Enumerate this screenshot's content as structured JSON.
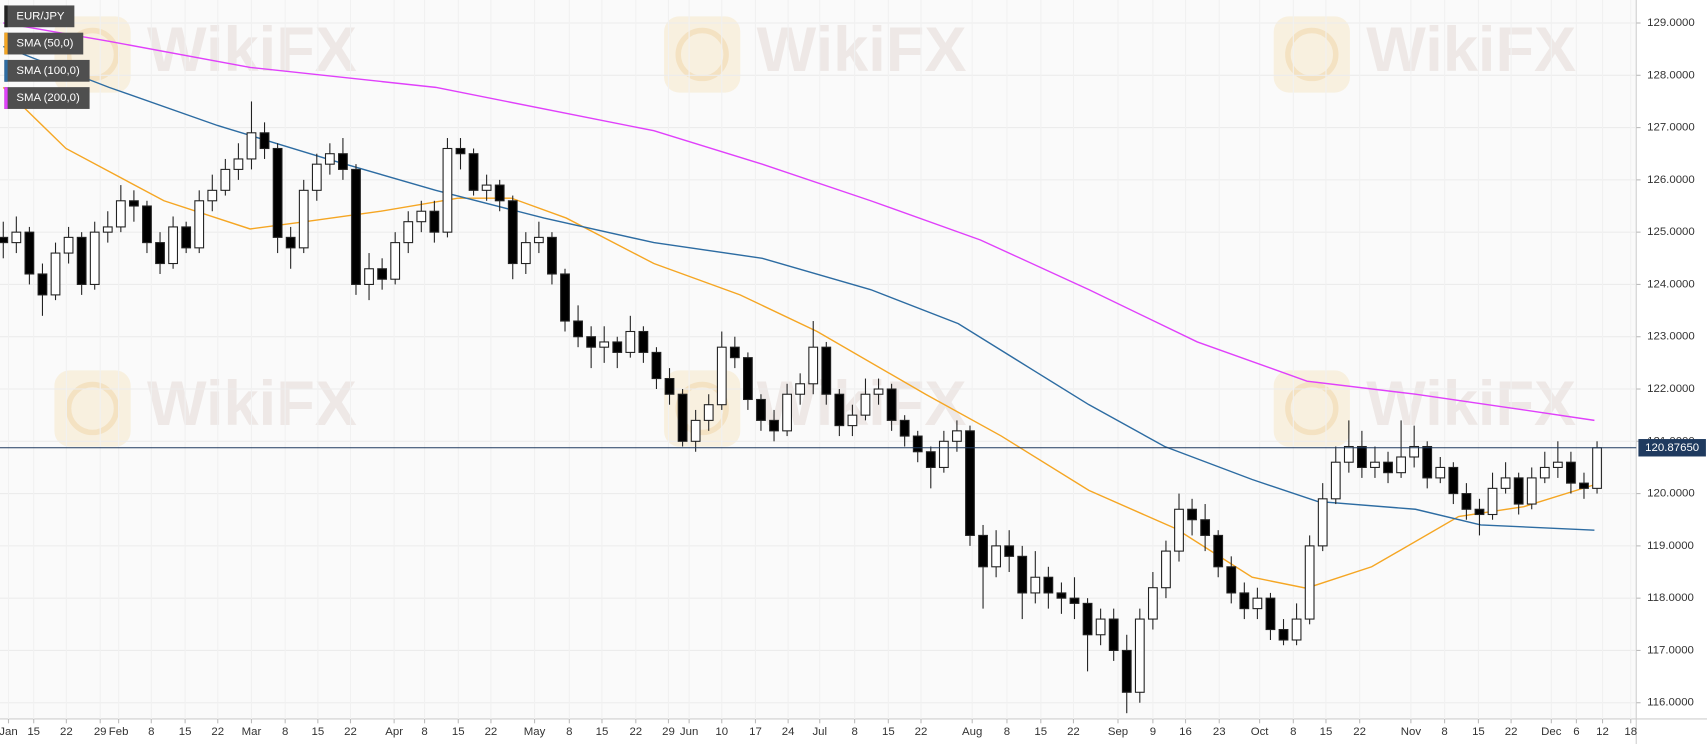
{
  "chart_data": {
    "type": "candlestick",
    "watermark": "WikiFX",
    "candles": {
      "name": "EUR/JPY",
      "color": "#222222",
      "up_color": "#ffffff",
      "down_color": "#000000",
      "ohlc": [
        [
          124.9,
          125.2,
          124.5,
          124.8
        ],
        [
          124.8,
          125.3,
          124.6,
          125.0
        ],
        [
          125.0,
          125.1,
          124.0,
          124.2
        ],
        [
          124.2,
          124.4,
          123.4,
          123.8
        ],
        [
          123.8,
          124.8,
          123.7,
          124.6
        ],
        [
          124.6,
          125.1,
          124.4,
          124.9
        ],
        [
          124.9,
          125.0,
          123.8,
          124.0
        ],
        [
          124.0,
          125.2,
          123.9,
          125.0
        ],
        [
          125.0,
          125.4,
          124.8,
          125.1
        ],
        [
          125.1,
          125.9,
          125.0,
          125.6
        ],
        [
          125.6,
          125.8,
          125.2,
          125.5
        ],
        [
          125.5,
          125.6,
          124.6,
          124.8
        ],
        [
          124.8,
          125.0,
          124.2,
          124.4
        ],
        [
          124.4,
          125.3,
          124.3,
          125.1
        ],
        [
          125.1,
          125.2,
          124.6,
          124.7
        ],
        [
          124.7,
          125.8,
          124.6,
          125.6
        ],
        [
          125.6,
          126.1,
          125.4,
          125.8
        ],
        [
          125.8,
          126.4,
          125.7,
          126.2
        ],
        [
          126.2,
          126.7,
          126.0,
          126.4
        ],
        [
          126.4,
          127.5,
          126.2,
          126.9
        ],
        [
          126.9,
          127.1,
          126.4,
          126.6
        ],
        [
          126.6,
          126.7,
          124.6,
          124.9
        ],
        [
          124.9,
          125.1,
          124.3,
          124.7
        ],
        [
          124.7,
          126.0,
          124.6,
          125.8
        ],
        [
          125.8,
          126.5,
          125.6,
          126.3
        ],
        [
          126.3,
          126.7,
          126.1,
          126.5
        ],
        [
          126.5,
          126.8,
          126.0,
          126.2
        ],
        [
          126.2,
          126.3,
          123.8,
          124.0
        ],
        [
          124.0,
          124.6,
          123.7,
          124.3
        ],
        [
          124.3,
          124.5,
          123.9,
          124.1
        ],
        [
          124.1,
          125.0,
          124.0,
          124.8
        ],
        [
          124.8,
          125.4,
          124.6,
          125.2
        ],
        [
          125.2,
          125.6,
          125.0,
          125.4
        ],
        [
          125.4,
          125.6,
          124.8,
          125.0
        ],
        [
          125.0,
          126.8,
          124.9,
          126.6
        ],
        [
          126.6,
          126.8,
          126.2,
          126.5
        ],
        [
          126.5,
          126.6,
          125.7,
          125.8
        ],
        [
          125.8,
          126.1,
          125.6,
          125.9
        ],
        [
          125.9,
          126.0,
          125.4,
          125.6
        ],
        [
          125.6,
          125.7,
          124.1,
          124.4
        ],
        [
          124.4,
          125.0,
          124.2,
          124.8
        ],
        [
          124.8,
          125.2,
          124.6,
          124.9
        ],
        [
          124.9,
          125.0,
          124.0,
          124.2
        ],
        [
          124.2,
          124.3,
          123.1,
          123.3
        ],
        [
          123.3,
          123.6,
          122.8,
          123.0
        ],
        [
          123.0,
          123.2,
          122.4,
          122.8
        ],
        [
          122.8,
          123.2,
          122.5,
          122.9
        ],
        [
          122.9,
          123.0,
          122.4,
          122.7
        ],
        [
          122.7,
          123.4,
          122.6,
          123.1
        ],
        [
          123.1,
          123.2,
          122.5,
          122.7
        ],
        [
          122.7,
          122.8,
          122.0,
          122.2
        ],
        [
          122.2,
          122.4,
          121.7,
          121.9
        ],
        [
          121.9,
          122.0,
          120.9,
          121.0
        ],
        [
          121.0,
          121.6,
          120.8,
          121.4
        ],
        [
          121.4,
          121.9,
          121.2,
          121.7
        ],
        [
          121.7,
          123.1,
          121.6,
          122.8
        ],
        [
          122.8,
          123.0,
          122.4,
          122.6
        ],
        [
          122.6,
          122.7,
          121.6,
          121.8
        ],
        [
          121.8,
          121.9,
          121.2,
          121.4
        ],
        [
          121.4,
          121.6,
          121.0,
          121.2
        ],
        [
          121.2,
          122.1,
          121.1,
          121.9
        ],
        [
          121.9,
          122.3,
          121.7,
          122.1
        ],
        [
          122.1,
          123.3,
          121.9,
          122.8
        ],
        [
          122.8,
          122.9,
          121.7,
          121.9
        ],
        [
          121.9,
          122.0,
          121.1,
          121.3
        ],
        [
          121.3,
          121.7,
          121.1,
          121.5
        ],
        [
          121.5,
          122.2,
          121.4,
          121.9
        ],
        [
          121.9,
          122.2,
          121.7,
          122.0
        ],
        [
          122.0,
          122.1,
          121.2,
          121.4
        ],
        [
          121.4,
          121.5,
          120.9,
          121.1
        ],
        [
          121.1,
          121.2,
          120.6,
          120.8
        ],
        [
          120.8,
          120.9,
          120.1,
          120.5
        ],
        [
          120.5,
          121.2,
          120.4,
          121.0
        ],
        [
          121.0,
          121.4,
          120.8,
          121.2
        ],
        [
          121.2,
          121.3,
          119.0,
          119.2
        ],
        [
          119.2,
          119.4,
          117.8,
          118.6
        ],
        [
          118.6,
          119.3,
          118.4,
          119.0
        ],
        [
          119.0,
          119.3,
          118.5,
          118.8
        ],
        [
          118.8,
          119.0,
          117.6,
          118.1
        ],
        [
          118.1,
          118.9,
          117.9,
          118.4
        ],
        [
          118.4,
          118.6,
          117.8,
          118.1
        ],
        [
          118.1,
          118.3,
          117.7,
          118.0
        ],
        [
          118.0,
          118.4,
          117.6,
          117.9
        ],
        [
          117.9,
          118.0,
          116.6,
          117.3
        ],
        [
          117.3,
          117.8,
          117.1,
          117.6
        ],
        [
          117.6,
          117.8,
          116.8,
          117.0
        ],
        [
          117.0,
          117.3,
          115.8,
          116.2
        ],
        [
          116.2,
          117.8,
          116.0,
          117.6
        ],
        [
          117.6,
          118.5,
          117.4,
          118.2
        ],
        [
          118.2,
          119.1,
          118.0,
          118.9
        ],
        [
          118.9,
          120.0,
          118.7,
          119.7
        ],
        [
          119.7,
          119.9,
          119.2,
          119.5
        ],
        [
          119.5,
          119.8,
          118.9,
          119.2
        ],
        [
          119.2,
          119.3,
          118.4,
          118.6
        ],
        [
          118.6,
          118.8,
          117.9,
          118.1
        ],
        [
          118.1,
          118.3,
          117.6,
          117.8
        ],
        [
          117.8,
          118.2,
          117.6,
          118.0
        ],
        [
          118.0,
          118.1,
          117.2,
          117.4
        ],
        [
          117.4,
          117.6,
          117.1,
          117.2
        ],
        [
          117.2,
          117.9,
          117.1,
          117.6
        ],
        [
          117.6,
          119.2,
          117.5,
          119.0
        ],
        [
          119.0,
          120.2,
          118.9,
          119.9
        ],
        [
          119.9,
          120.9,
          119.8,
          120.6
        ],
        [
          120.6,
          121.4,
          120.4,
          120.9
        ],
        [
          120.9,
          121.2,
          120.3,
          120.5
        ],
        [
          120.5,
          120.9,
          120.3,
          120.6
        ],
        [
          120.6,
          120.8,
          120.2,
          120.4
        ],
        [
          120.4,
          121.4,
          120.3,
          120.7
        ],
        [
          120.7,
          121.3,
          120.5,
          120.9
        ],
        [
          120.9,
          121.0,
          120.1,
          120.3
        ],
        [
          120.3,
          120.7,
          120.2,
          120.5
        ],
        [
          120.5,
          120.6,
          119.8,
          120.0
        ],
        [
          120.0,
          120.2,
          119.5,
          119.7
        ],
        [
          119.7,
          119.9,
          119.2,
          119.6
        ],
        [
          119.6,
          120.4,
          119.5,
          120.1
        ],
        [
          120.1,
          120.6,
          120.0,
          120.3
        ],
        [
          120.3,
          120.4,
          119.6,
          119.8
        ],
        [
          119.8,
          120.5,
          119.7,
          120.3
        ],
        [
          120.3,
          120.8,
          120.2,
          120.5
        ],
        [
          120.5,
          121.0,
          120.3,
          120.6
        ],
        [
          120.6,
          120.8,
          120.0,
          120.2
        ],
        [
          120.2,
          120.4,
          119.9,
          120.1
        ],
        [
          120.1,
          121.0,
          120.0,
          120.8765
        ]
      ]
    },
    "lines": [
      {
        "name": "SMA (50,0)",
        "color": "#f5a623",
        "x": [
          0,
          4.8,
          12.3,
          18.9,
          23.1,
          28.9,
          34.8,
          38.9,
          43.1,
          49.8,
          56.4,
          62.3,
          70.6,
          76.4,
          83.1,
          89.75,
          95.6,
          99.75,
          104.75,
          111.4,
          116.4,
          121.8
        ],
        "values": [
          127.77,
          126.6,
          125.6,
          125.06,
          125.2,
          125.4,
          125.65,
          125.65,
          125.27,
          124.4,
          123.8,
          123.1,
          121.9,
          121.1,
          120.06,
          119.33,
          118.4,
          118.19,
          118.6,
          119.56,
          119.75,
          120.17
        ]
      },
      {
        "name": "SMA (100,0)",
        "color": "#2d6ca2",
        "x": [
          0,
          8.1,
          16.4,
          24.8,
          33.1,
          41.4,
          49.8,
          58.1,
          66.4,
          73.1,
          78.9,
          83.1,
          88.9,
          95.6,
          100.6,
          108.1,
          113.1,
          121.8
        ],
        "values": [
          128.55,
          127.77,
          127.04,
          126.4,
          125.8,
          125.27,
          124.8,
          124.5,
          123.9,
          123.25,
          122.35,
          121.7,
          120.9,
          120.27,
          119.85,
          119.7,
          119.4,
          119.3
        ]
      },
      {
        "name": "SMA (200,0)",
        "color": "#e040fb",
        "x": [
          0,
          8.1,
          18.9,
          33.1,
          49.8,
          58.1,
          66.4,
          74.8,
          83.1,
          91.4,
          99.8,
          108.1,
          116.4,
          121.8
        ],
        "values": [
          129.0,
          128.65,
          128.15,
          127.77,
          126.94,
          126.3,
          125.6,
          124.85,
          123.9,
          122.9,
          122.15,
          121.9,
          121.6,
          121.4
        ]
      }
    ],
    "last_price": {
      "value": 120.8765,
      "label": "120.87650",
      "color": "#1f3a5f"
    },
    "ylim": [
      115.69,
      129.44
    ],
    "yticks": [
      {
        "value": 116,
        "label": "116.0000"
      },
      {
        "value": 117,
        "label": "117.0000"
      },
      {
        "value": 118,
        "label": "118.0000"
      },
      {
        "value": 119,
        "label": "119.0000"
      },
      {
        "value": 120,
        "label": "120.0000"
      },
      {
        "value": 121,
        "label": "121.0000"
      },
      {
        "value": 122,
        "label": "122.0000"
      },
      {
        "value": 123,
        "label": "123.0000"
      },
      {
        "value": 124,
        "label": "124.0000"
      },
      {
        "value": 125,
        "label": "125.0000"
      },
      {
        "value": 126,
        "label": "126.0000"
      },
      {
        "value": 127,
        "label": "127.0000"
      },
      {
        "value": 128,
        "label": "128.0000"
      },
      {
        "value": 129,
        "label": "129.0000"
      }
    ],
    "xlim": [
      -0.25,
      125.0
    ],
    "xticks": [
      {
        "value": 0.4,
        "label": "Jan"
      },
      {
        "value": 2.33,
        "label": "15"
      },
      {
        "value": 4.83,
        "label": "22"
      },
      {
        "value": 7.42,
        "label": "29"
      },
      {
        "value": 8.83,
        "label": "Feb"
      },
      {
        "value": 11.33,
        "label": "8"
      },
      {
        "value": 13.92,
        "label": "15"
      },
      {
        "value": 16.42,
        "label": "22"
      },
      {
        "value": 19.0,
        "label": "Mar"
      },
      {
        "value": 21.58,
        "label": "8"
      },
      {
        "value": 24.08,
        "label": "15"
      },
      {
        "value": 26.58,
        "label": "22"
      },
      {
        "value": 29.92,
        "label": "Apr"
      },
      {
        "value": 32.25,
        "label": "8"
      },
      {
        "value": 34.83,
        "label": "15"
      },
      {
        "value": 37.33,
        "label": "22"
      },
      {
        "value": 40.67,
        "label": "May"
      },
      {
        "value": 43.33,
        "label": "8"
      },
      {
        "value": 45.83,
        "label": "15"
      },
      {
        "value": 48.42,
        "label": "22"
      },
      {
        "value": 50.92,
        "label": "29"
      },
      {
        "value": 52.5,
        "label": "Jun"
      },
      {
        "value": 55.0,
        "label": "10"
      },
      {
        "value": 57.58,
        "label": "17"
      },
      {
        "value": 60.08,
        "label": "24"
      },
      {
        "value": 62.5,
        "label": "Jul"
      },
      {
        "value": 65.17,
        "label": "8"
      },
      {
        "value": 67.75,
        "label": "15"
      },
      {
        "value": 70.25,
        "label": "22"
      },
      {
        "value": 74.17,
        "label": "Aug"
      },
      {
        "value": 76.83,
        "label": "8"
      },
      {
        "value": 79.42,
        "label": "15"
      },
      {
        "value": 81.92,
        "label": "22"
      },
      {
        "value": 85.33,
        "label": "Sep"
      },
      {
        "value": 88.0,
        "label": "9"
      },
      {
        "value": 90.5,
        "label": "16"
      },
      {
        "value": 93.08,
        "label": "23"
      },
      {
        "value": 96.17,
        "label": "Oct"
      },
      {
        "value": 98.75,
        "label": "8"
      },
      {
        "value": 101.25,
        "label": "15"
      },
      {
        "value": 103.83,
        "label": "22"
      },
      {
        "value": 107.75,
        "label": "Nov"
      },
      {
        "value": 110.33,
        "label": "8"
      },
      {
        "value": 112.92,
        "label": "15"
      },
      {
        "value": 115.42,
        "label": "22"
      },
      {
        "value": 118.5,
        "label": "Dec"
      },
      {
        "value": 120.42,
        "label": "6"
      },
      {
        "value": 122.42,
        "label": "12"
      },
      {
        "value": 124.58,
        "label": "18"
      }
    ],
    "grid": true
  }
}
